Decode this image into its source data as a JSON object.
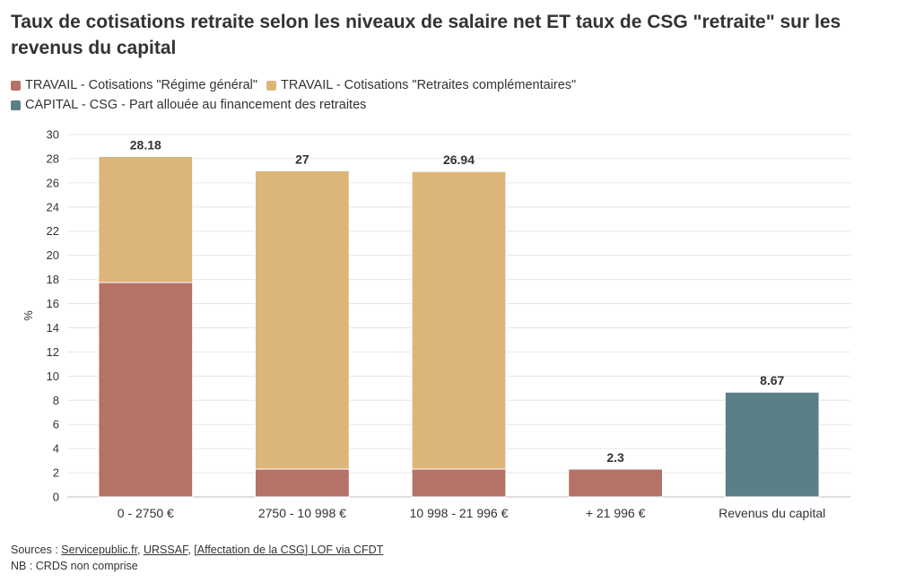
{
  "title": "Taux de cotisations retraite selon les niveaux de salaire net ET taux de CSG \"retraite\" sur les revenus du capital",
  "colors": {
    "travail_general": "#b57266",
    "travail_complementaire": "#dcb578",
    "capital": "#5b7f86"
  },
  "legend": [
    {
      "label": "TRAVAIL - Cotisations \"Régime général\"",
      "color": "#b57266"
    },
    {
      "label": "TRAVAIL - Cotisations \"Retraites complémentaires\"",
      "color": "#dcb578"
    },
    {
      "label": "CAPITAL - CSG - Part allouée au financement des retraites",
      "color": "#5b7f86"
    }
  ],
  "chart_data": {
    "type": "bar",
    "stacked": true,
    "categories": [
      "0 - 2750 €",
      "2750 - 10 998 €",
      "10 998 - 21 996 €",
      "+ 21 996 €",
      "Revenus du capital"
    ],
    "series": [
      {
        "name": "TRAVAIL - Cotisations \"Régime général\"",
        "color": "#b57266",
        "values": [
          17.75,
          2.3,
          2.3,
          2.3,
          0
        ]
      },
      {
        "name": "TRAVAIL - Cotisations \"Retraites complémentaires\"",
        "color": "#dcb578",
        "values": [
          10.43,
          24.7,
          24.64,
          0,
          0
        ]
      },
      {
        "name": "CAPITAL - CSG - Part allouée au financement des retraites",
        "color": "#5b7f86",
        "values": [
          0,
          0,
          0,
          0,
          8.67
        ]
      }
    ],
    "totals": [
      "28.18",
      "27",
      "26.94",
      "2.3",
      "8.67"
    ],
    "ylabel": "%",
    "xlabel": "",
    "ylim": [
      0,
      30
    ],
    "yticks": [
      0,
      2,
      4,
      6,
      8,
      10,
      12,
      14,
      16,
      18,
      20,
      22,
      24,
      26,
      28,
      30
    ],
    "grid": true
  },
  "footer": {
    "sources_prefix": "Sources : ",
    "sources": [
      "Servicepublic.fr",
      "URSSAF",
      "[Affectation de la CSG] LOF via CFDT"
    ],
    "separator": ", ",
    "note": "NB : CRDS non comprise"
  }
}
